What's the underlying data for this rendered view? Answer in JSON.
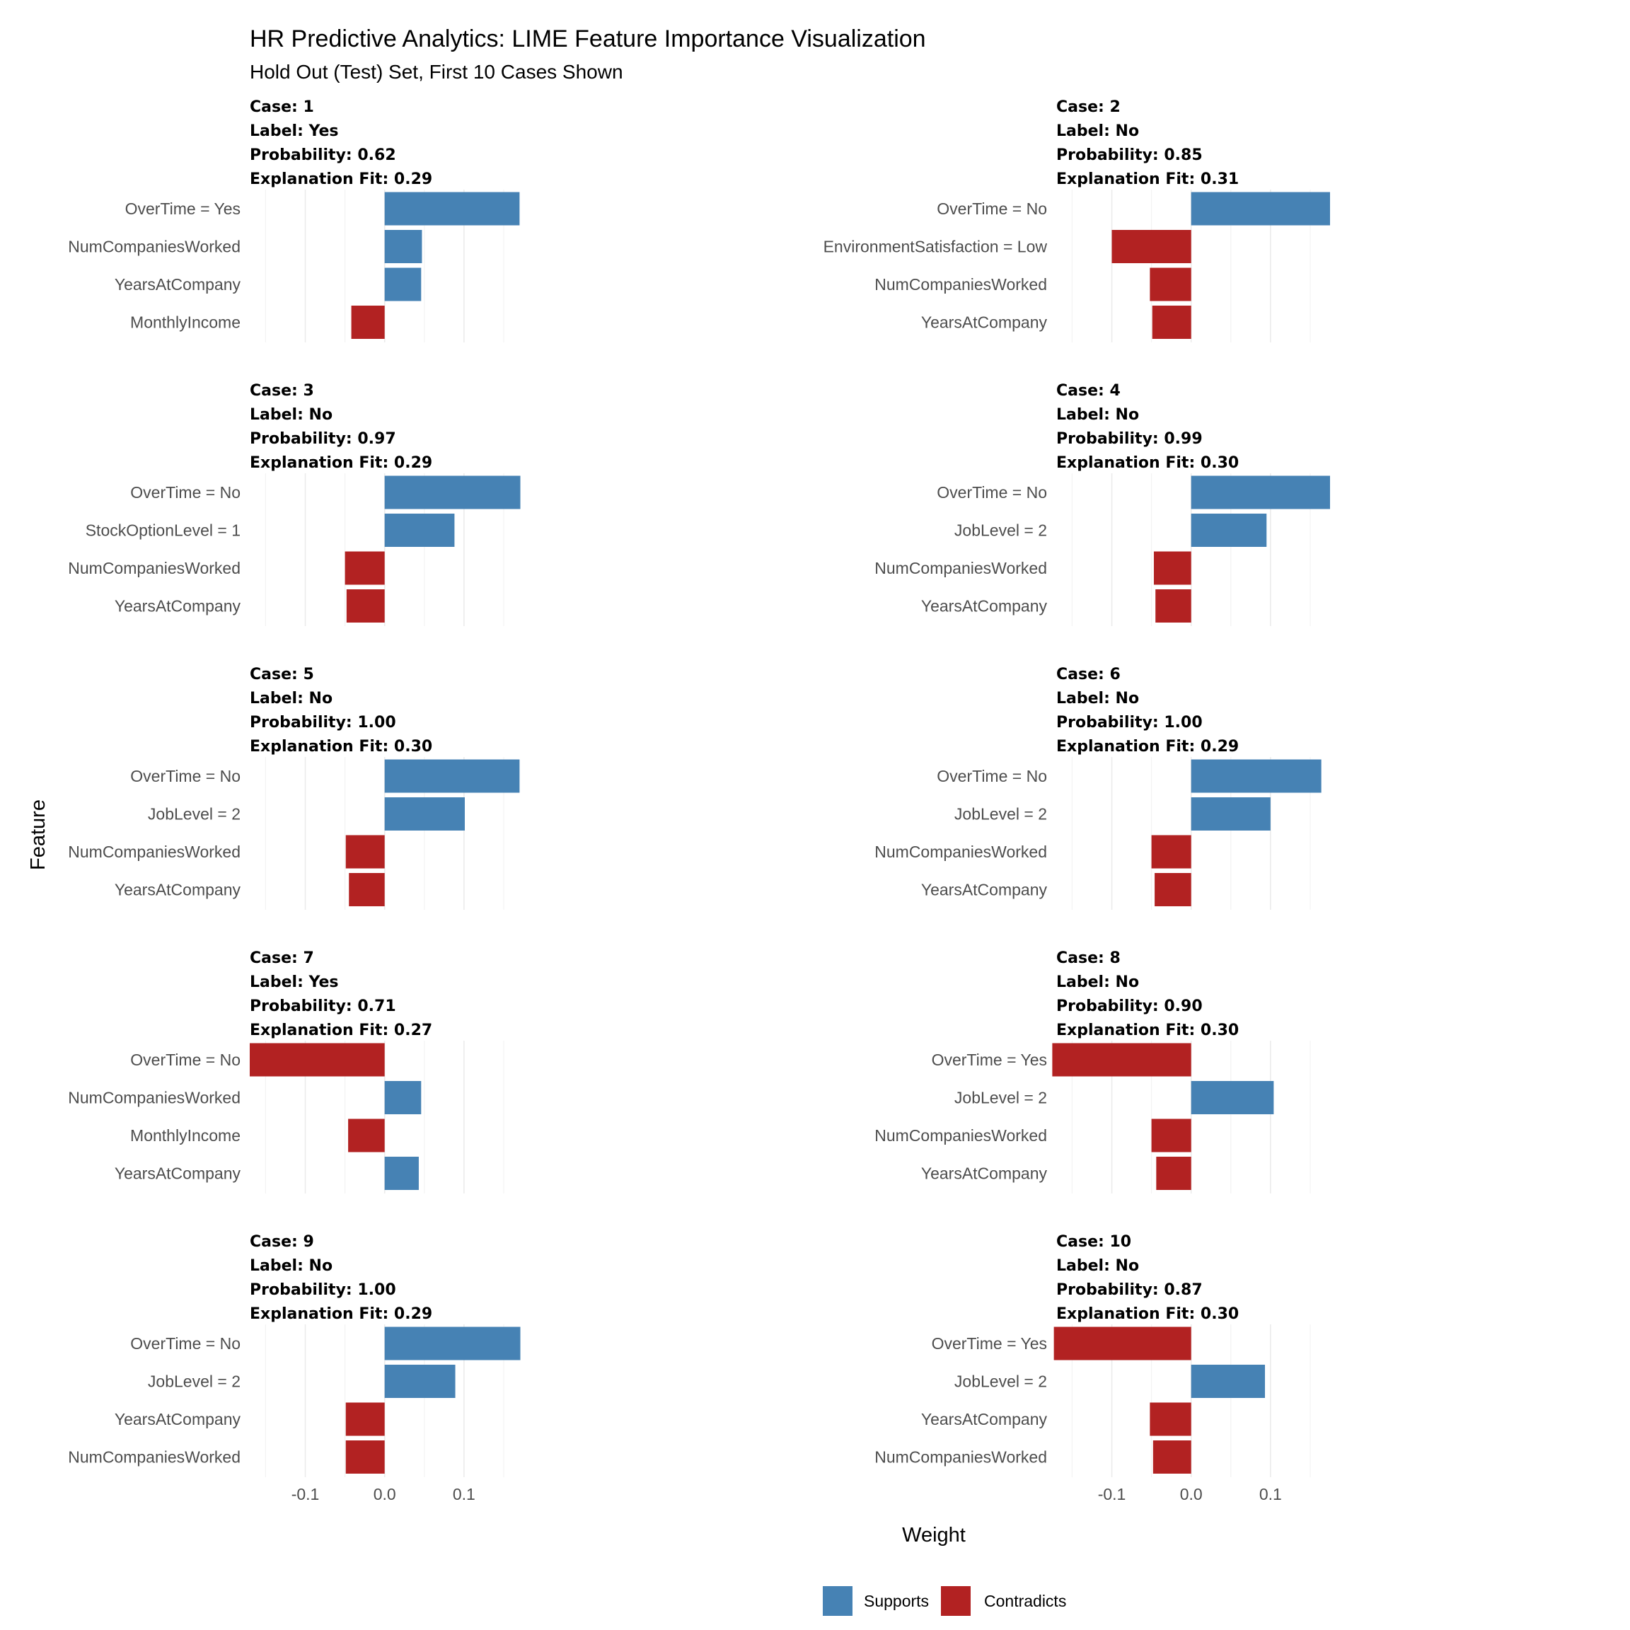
{
  "chart_data": {
    "type": "bar",
    "orientation": "horizontal",
    "title": "HR Predictive Analytics: LIME Feature Importance Visualization",
    "subtitle": "Hold Out (Test) Set, First 10 Cases Shown",
    "xlabel": "Weight",
    "ylabel": "Feature",
    "xlim": [
      -0.17,
      0.175
    ],
    "xticks": [
      -0.1,
      0.0,
      0.1
    ],
    "xtick_labels": [
      "-0.1",
      "0.0",
      "0.1"
    ],
    "grid": true,
    "legend_position": "bottom",
    "legend": [
      {
        "label": "Supports",
        "color": "#4682B4"
      },
      {
        "label": "Contradicts",
        "color": "#B22222"
      }
    ],
    "facet_strip_prefixes": {
      "case": "Case: ",
      "label": "Label: ",
      "probability": "Probability: ",
      "fit": "Explanation Fit: "
    },
    "facets": [
      {
        "case": "1",
        "label": "Yes",
        "probability": "0.62",
        "fit": "0.29",
        "features": [
          "OverTime = Yes",
          "NumCompaniesWorked",
          "YearsAtCompany",
          "MonthlyIncome"
        ],
        "weights": [
          0.17,
          0.047,
          0.046,
          -0.042
        ]
      },
      {
        "case": "2",
        "label": "No",
        "probability": "0.85",
        "fit": "0.31",
        "features": [
          "OverTime = No",
          "EnvironmentSatisfaction = Low",
          "NumCompaniesWorked",
          "YearsAtCompany"
        ],
        "weights": [
          0.175,
          -0.1,
          -0.052,
          -0.049
        ]
      },
      {
        "case": "3",
        "label": "No",
        "probability": "0.97",
        "fit": "0.29",
        "features": [
          "OverTime = No",
          "StockOptionLevel = 1",
          "NumCompaniesWorked",
          "YearsAtCompany"
        ],
        "weights": [
          0.171,
          0.088,
          -0.05,
          -0.048
        ]
      },
      {
        "case": "4",
        "label": "No",
        "probability": "0.99",
        "fit": "0.30",
        "features": [
          "OverTime = No",
          "JobLevel = 2",
          "NumCompaniesWorked",
          "YearsAtCompany"
        ],
        "weights": [
          0.175,
          0.095,
          -0.047,
          -0.045
        ]
      },
      {
        "case": "5",
        "label": "No",
        "probability": "1.00",
        "fit": "0.30",
        "features": [
          "OverTime = No",
          "JobLevel = 2",
          "NumCompaniesWorked",
          "YearsAtCompany"
        ],
        "weights": [
          0.17,
          0.101,
          -0.049,
          -0.045
        ]
      },
      {
        "case": "6",
        "label": "No",
        "probability": "1.00",
        "fit": "0.29",
        "features": [
          "OverTime = No",
          "JobLevel = 2",
          "NumCompaniesWorked",
          "YearsAtCompany"
        ],
        "weights": [
          0.164,
          0.1,
          -0.05,
          -0.046
        ]
      },
      {
        "case": "7",
        "label": "Yes",
        "probability": "0.71",
        "fit": "0.27",
        "features": [
          "OverTime = No",
          "NumCompaniesWorked",
          "MonthlyIncome",
          "YearsAtCompany"
        ],
        "weights": [
          -0.17,
          0.046,
          -0.046,
          0.043
        ]
      },
      {
        "case": "8",
        "label": "No",
        "probability": "0.90",
        "fit": "0.30",
        "features": [
          "OverTime = Yes",
          "JobLevel = 2",
          "NumCompaniesWorked",
          "YearsAtCompany"
        ],
        "weights": [
          -0.175,
          0.104,
          -0.05,
          -0.044
        ]
      },
      {
        "case": "9",
        "label": "No",
        "probability": "1.00",
        "fit": "0.29",
        "features": [
          "OverTime = No",
          "JobLevel = 2",
          "YearsAtCompany",
          "NumCompaniesWorked"
        ],
        "weights": [
          0.171,
          0.089,
          -0.049,
          -0.049
        ]
      },
      {
        "case": "10",
        "label": "No",
        "probability": "0.87",
        "fit": "0.30",
        "features": [
          "OverTime = Yes",
          "JobLevel = 2",
          "YearsAtCompany",
          "NumCompaniesWorked"
        ],
        "weights": [
          -0.173,
          0.093,
          -0.052,
          -0.048
        ]
      }
    ]
  }
}
